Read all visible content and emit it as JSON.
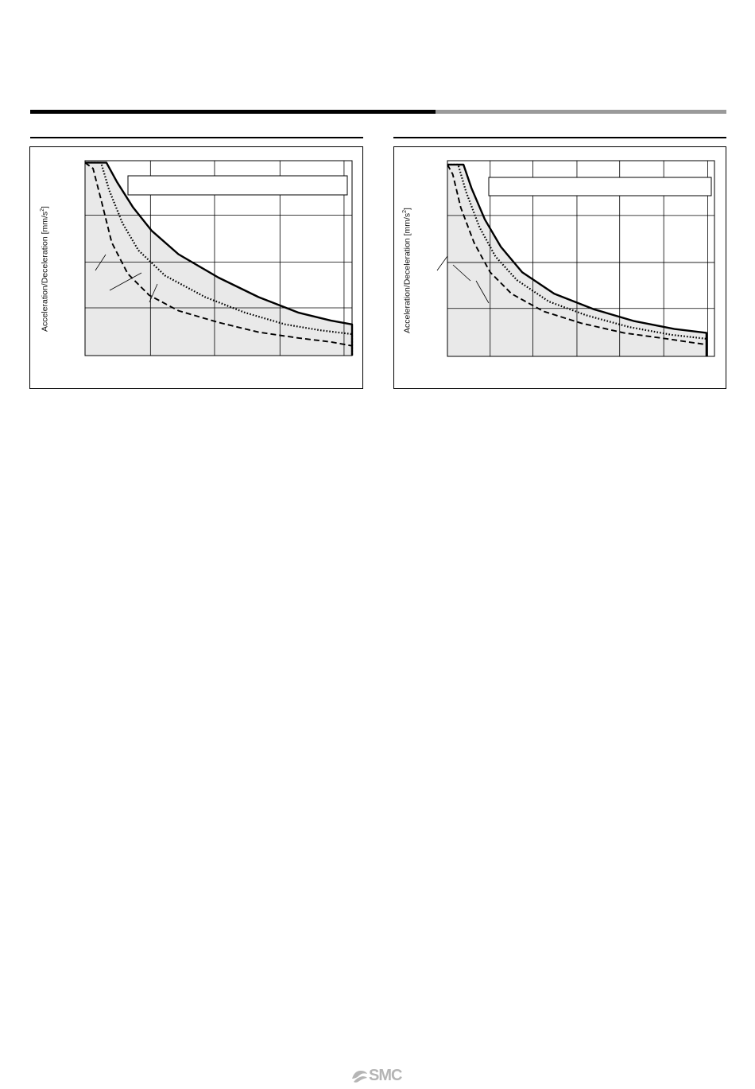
{
  "charts": [
    {
      "ylabel": "Acceleration/Deceleration [mm/s",
      "ylabel_sup": "2",
      "ylabel_tail": "]"
    },
    {
      "ylabel": "Acceleration/Deceleration [mm/s",
      "ylabel_sup": "2",
      "ylabel_tail": "]"
    }
  ],
  "footer": {
    "logo": "SMC"
  },
  "chart_data": [
    {
      "type": "line",
      "xlim": [
        0,
        1
      ],
      "ylim": [
        0,
        1
      ],
      "grid": true,
      "series": [
        {
          "style": "solid",
          "x": [
            0.0,
            0.08,
            0.12,
            0.18,
            0.25,
            0.35,
            0.5,
            0.65,
            0.8,
            0.92,
            1.0,
            1.0
          ],
          "y": [
            0.99,
            0.99,
            0.89,
            0.76,
            0.64,
            0.52,
            0.4,
            0.3,
            0.22,
            0.18,
            0.16,
            0.0
          ]
        },
        {
          "style": "dotted",
          "x": [
            0.0,
            0.06,
            0.09,
            0.14,
            0.2,
            0.3,
            0.45,
            0.6,
            0.75,
            0.88,
            1.0,
            1.0
          ],
          "y": [
            0.99,
            0.99,
            0.85,
            0.68,
            0.54,
            0.41,
            0.3,
            0.22,
            0.16,
            0.13,
            0.11,
            0.0
          ]
        },
        {
          "style": "dashed",
          "x": [
            0.0,
            0.03,
            0.06,
            0.1,
            0.16,
            0.24,
            0.35,
            0.5,
            0.65,
            0.8,
            0.92,
            1.0
          ],
          "y": [
            0.99,
            0.96,
            0.8,
            0.58,
            0.42,
            0.31,
            0.23,
            0.17,
            0.12,
            0.09,
            0.07,
            0.05
          ]
        }
      ]
    },
    {
      "type": "line",
      "xlim": [
        0,
        1
      ],
      "ylim": [
        0,
        1
      ],
      "grid": true,
      "series": [
        {
          "style": "solid",
          "x": [
            0.0,
            0.06,
            0.09,
            0.14,
            0.2,
            0.28,
            0.4,
            0.55,
            0.7,
            0.85,
            0.97,
            0.97
          ],
          "y": [
            0.98,
            0.98,
            0.86,
            0.7,
            0.56,
            0.43,
            0.32,
            0.24,
            0.18,
            0.14,
            0.12,
            0.0
          ]
        },
        {
          "style": "dotted",
          "x": [
            0.0,
            0.04,
            0.07,
            0.12,
            0.18,
            0.26,
            0.38,
            0.52,
            0.68,
            0.84,
            0.97
          ],
          "y": [
            0.98,
            0.98,
            0.84,
            0.66,
            0.51,
            0.39,
            0.28,
            0.21,
            0.15,
            0.11,
            0.09
          ]
        },
        {
          "style": "dashed",
          "x": [
            0.0,
            0.02,
            0.05,
            0.1,
            0.16,
            0.24,
            0.36,
            0.5,
            0.66,
            0.82,
            0.97
          ],
          "y": [
            0.98,
            0.93,
            0.76,
            0.58,
            0.43,
            0.32,
            0.23,
            0.17,
            0.12,
            0.09,
            0.06
          ]
        }
      ]
    }
  ]
}
